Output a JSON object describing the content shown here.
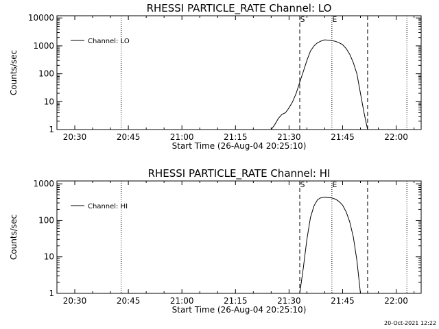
{
  "footer": {
    "timestamp": "20-Oct-2021 12:22"
  },
  "chart_data": [
    {
      "type": "line",
      "title": "RHESSI PARTICLE_RATE Channel: LO",
      "xlabel": "Start Time (26-Aug-04 20:25:10)",
      "ylabel": "Counts/sec",
      "yscale": "log",
      "ylim": [
        1,
        12000
      ],
      "xlim": [
        "20:25",
        "22:07"
      ],
      "xticks": [
        "20:30",
        "20:45",
        "21:00",
        "21:15",
        "21:30",
        "21:45",
        "22:00"
      ],
      "yticks": [
        "1",
        "10",
        "100",
        "1000",
        "10000"
      ],
      "legend": {
        "label": "Channel: LO",
        "placement": "top-left"
      },
      "event_markers": [
        {
          "label": "S",
          "time": "21:33",
          "style": "dashed"
        },
        {
          "label": "E",
          "time": "21:42",
          "style": "dotted"
        }
      ],
      "vertical_lines": [
        {
          "time": "20:43",
          "style": "dotted"
        },
        {
          "time": "21:52",
          "style": "dashed"
        },
        {
          "time": "22:03",
          "style": "dotted"
        }
      ],
      "series": [
        {
          "color": "#000000",
          "x": [
            "21:25",
            "21:26",
            "21:27",
            "21:28",
            "21:29",
            "21:30",
            "21:31",
            "21:32",
            "21:33",
            "21:34",
            "21:35",
            "21:36",
            "21:37",
            "21:38",
            "21:39",
            "21:40",
            "21:41",
            "21:42",
            "21:43",
            "21:44",
            "21:45",
            "21:46",
            "21:47",
            "21:48",
            "21:49",
            "21:50",
            "21:51",
            "21:52"
          ],
          "y": [
            1,
            1.5,
            2.5,
            3.5,
            4,
            6,
            10,
            20,
            50,
            120,
            300,
            650,
            1000,
            1300,
            1500,
            1650,
            1600,
            1550,
            1450,
            1300,
            1100,
            800,
            500,
            250,
            100,
            20,
            4,
            1
          ]
        }
      ]
    },
    {
      "type": "line",
      "title": "RHESSI PARTICLE_RATE Channel: HI",
      "xlabel": "Start Time (26-Aug-04 20:25:10)",
      "ylabel": "Counts/sec",
      "yscale": "log",
      "ylim": [
        1,
        1200
      ],
      "xlim": [
        "20:25",
        "22:07"
      ],
      "xticks": [
        "20:30",
        "20:45",
        "21:00",
        "21:15",
        "21:30",
        "21:45",
        "22:00"
      ],
      "yticks": [
        "1",
        "10",
        "100",
        "1000"
      ],
      "legend": {
        "label": "Channel: HI",
        "placement": "top-left"
      },
      "event_markers": [
        {
          "label": "S",
          "time": "21:33",
          "style": "dashed"
        },
        {
          "label": "E",
          "time": "21:42",
          "style": "dotted"
        }
      ],
      "vertical_lines": [
        {
          "time": "20:43",
          "style": "dotted"
        },
        {
          "time": "21:52",
          "style": "dashed"
        },
        {
          "time": "22:03",
          "style": "dotted"
        }
      ],
      "series": [
        {
          "color": "#000000",
          "x": [
            "21:33",
            "21:34",
            "21:35",
            "21:36",
            "21:37",
            "21:38",
            "21:39",
            "21:40",
            "21:41",
            "21:42",
            "21:43",
            "21:44",
            "21:45",
            "21:46",
            "21:47",
            "21:48",
            "21:49",
            "21:50"
          ],
          "y": [
            1,
            5,
            30,
            120,
            250,
            370,
            420,
            430,
            420,
            410,
            380,
            330,
            260,
            170,
            90,
            35,
            8,
            1
          ]
        }
      ]
    }
  ]
}
